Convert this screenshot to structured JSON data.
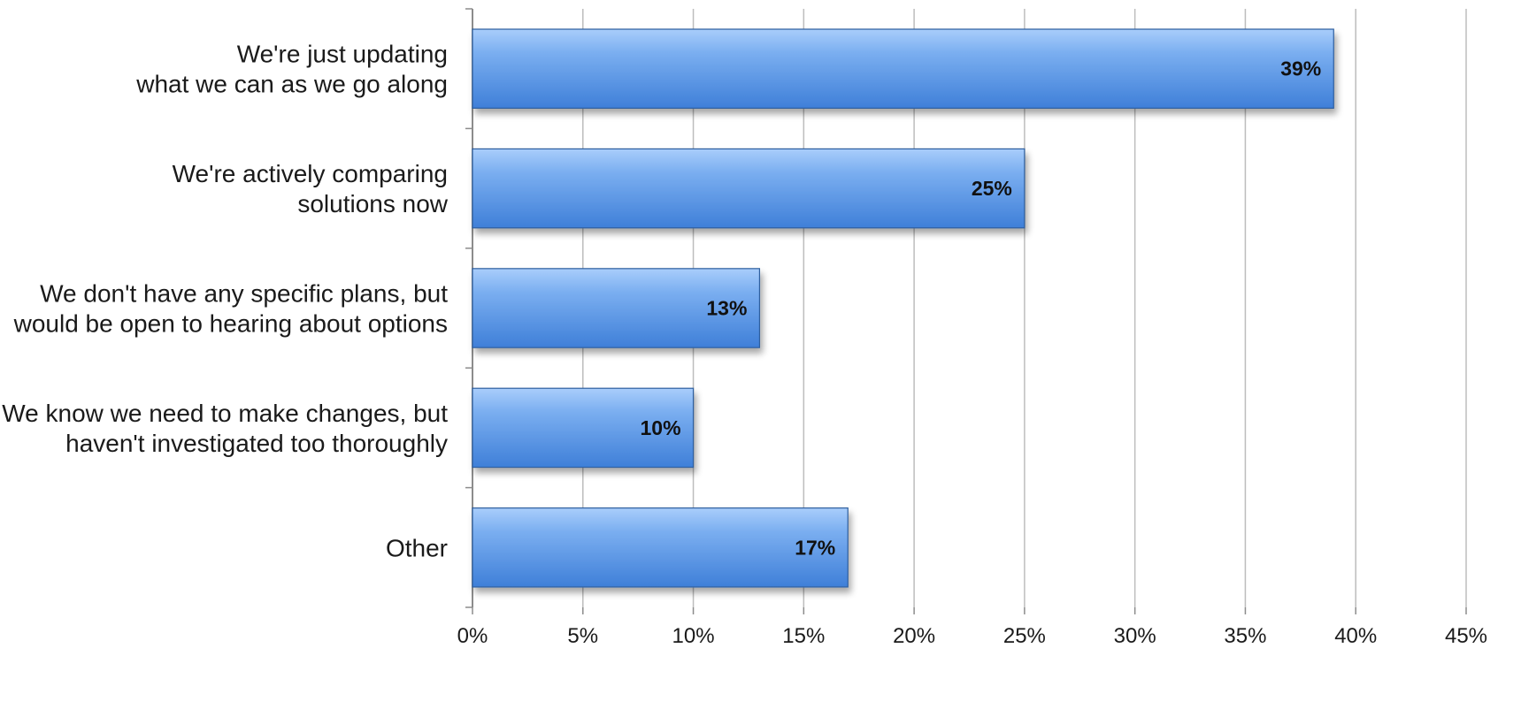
{
  "chart_data": {
    "type": "bar",
    "orientation": "horizontal",
    "title": "",
    "xlabel": "",
    "ylabel": "",
    "categories": [
      [
        "We're just updating",
        "what we can as we go along"
      ],
      [
        "We're actively comparing",
        "solutions now"
      ],
      [
        "We don't have any specific plans, but",
        "would be open to hearing about options"
      ],
      [
        "We know we need to make changes, but",
        "haven't investigated too thoroughly"
      ],
      [
        "Other"
      ]
    ],
    "values": [
      39,
      25,
      13,
      10,
      17
    ],
    "data_labels": [
      "39%",
      "25%",
      "13%",
      "10%",
      "17%"
    ],
    "xlim": [
      0,
      45
    ],
    "x_ticks": [
      0,
      5,
      10,
      15,
      20,
      25,
      30,
      35,
      40,
      45
    ],
    "x_tick_labels": [
      "0%",
      "5%",
      "10%",
      "15%",
      "20%",
      "25%",
      "30%",
      "35%",
      "40%",
      "45%"
    ],
    "grid": true,
    "legend": "none",
    "colors": {
      "bar_light": "#a9cdfb",
      "bar_mid": "#7aaef0",
      "bar_dark": "#3f7fd8",
      "bar_edge": "#2f5f9f",
      "gridline": "#bdbdbd",
      "axis": "#8c8c8c"
    }
  }
}
